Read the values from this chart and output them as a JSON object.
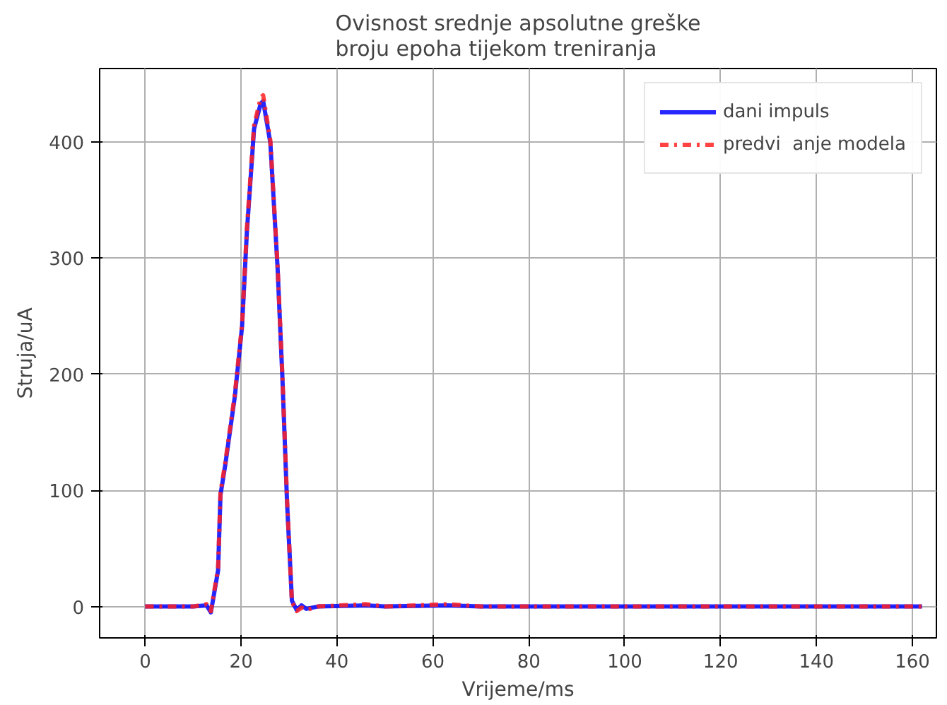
{
  "chart_data": {
    "type": "line",
    "title": "Ovisnost srednje apsolutne greške\n broju epoha tijekom treniranja",
    "xlabel": "Vrijeme/ms",
    "ylabel": "Struja/uA",
    "xlim": [
      -9.5,
      165
    ],
    "ylim": [
      -27,
      463
    ],
    "xticks": [
      0,
      20,
      40,
      60,
      80,
      100,
      120,
      140,
      160
    ],
    "yticks": [
      0,
      100,
      200,
      300,
      400
    ],
    "grid": true,
    "legend": "top right",
    "series": [
      {
        "name": "dani impuls",
        "color": "#0000ff",
        "line_style": "solid",
        "x": [
          0,
          5,
          10,
          12.8,
          13.7,
          15.2,
          15.7,
          16.7,
          18.7,
          20.2,
          21.2,
          22.7,
          24.1,
          24.6,
          26.1,
          27.6,
          28.6,
          29.6,
          30.6,
          31.6,
          32.6,
          33.6,
          36,
          46,
          50,
          63,
          70,
          100,
          162
        ],
        "values": [
          0,
          0,
          0,
          1,
          -5,
          31,
          96,
          122,
          181,
          241,
          322,
          411,
          433,
          435,
          399,
          292,
          198,
          88,
          5,
          -3,
          1,
          -2,
          0,
          1,
          0,
          1,
          0,
          0,
          0
        ]
      },
      {
        "name": "predvi  anje modela",
        "color": "#ff2222",
        "line_style": "dashdot",
        "x": [
          0,
          5,
          10,
          12.8,
          13.7,
          15.2,
          15.7,
          16.7,
          18.7,
          20.2,
          21.2,
          22.7,
          24.1,
          24.6,
          26.1,
          27.6,
          28.6,
          29.6,
          30.6,
          31.6,
          32.6,
          33.6,
          36,
          46,
          50,
          63,
          70,
          100,
          162
        ],
        "values": [
          0,
          0,
          0,
          2,
          -4,
          33,
          98,
          124,
          183,
          243,
          325,
          414,
          438,
          440,
          401,
          294,
          200,
          90,
          4,
          -4,
          -1,
          -3,
          0,
          2,
          0,
          2,
          0,
          0,
          0
        ]
      }
    ]
  }
}
